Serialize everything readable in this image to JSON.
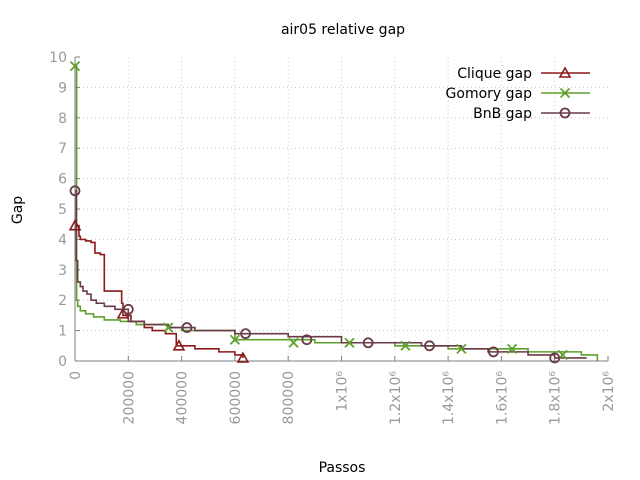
{
  "chart_data": {
    "type": "line",
    "title": "air05 relative gap",
    "xlabel": "Passos",
    "ylabel": "Gap",
    "xlim": [
      0,
      2000000
    ],
    "ylim": [
      0,
      10
    ],
    "grid": true,
    "legend_position": "top-right",
    "x_ticks": [
      {
        "value": 0,
        "label": "0"
      },
      {
        "value": 200000,
        "label": "200000"
      },
      {
        "value": 400000,
        "label": "400000"
      },
      {
        "value": 600000,
        "label": "600000"
      },
      {
        "value": 800000,
        "label": "800000"
      },
      {
        "value": 1000000,
        "label": "1x10⁶"
      },
      {
        "value": 1200000,
        "label": "1.2x10⁶"
      },
      {
        "value": 1400000,
        "label": "1.4x10⁶"
      },
      {
        "value": 1600000,
        "label": "1.6x10⁶"
      },
      {
        "value": 1800000,
        "label": "1.8x10⁶"
      },
      {
        "value": 2000000,
        "label": "2x10⁶"
      }
    ],
    "y_ticks": [
      {
        "value": 0,
        "label": "0"
      },
      {
        "value": 1,
        "label": "1"
      },
      {
        "value": 2,
        "label": "2"
      },
      {
        "value": 3,
        "label": "3"
      },
      {
        "value": 4,
        "label": "4"
      },
      {
        "value": 5,
        "label": "5"
      },
      {
        "value": 6,
        "label": "6"
      },
      {
        "value": 7,
        "label": "7"
      },
      {
        "value": 8,
        "label": "8"
      },
      {
        "value": 9,
        "label": "9"
      },
      {
        "value": 10,
        "label": "10"
      }
    ],
    "series": [
      {
        "name": "Clique gap",
        "color": "#8b1a1a",
        "marker": "triangle",
        "x": [
          0,
          15000,
          20000,
          40000,
          60000,
          75000,
          95000,
          110000,
          155000,
          175000,
          180000,
          210000,
          260000,
          290000,
          340000,
          380000,
          410000,
          450000,
          540000,
          600000,
          630000
        ],
        "y": [
          4.45,
          4.1,
          4.0,
          3.95,
          3.9,
          3.55,
          3.5,
          2.3,
          2.3,
          1.9,
          1.5,
          1.3,
          1.1,
          1.0,
          0.9,
          0.5,
          0.5,
          0.4,
          0.3,
          0.2,
          0.1
        ],
        "markers_x": [
          0,
          180000,
          390000,
          630000
        ],
        "markers_y": [
          4.45,
          1.55,
          0.5,
          0.1
        ]
      },
      {
        "name": "Gomory gap",
        "color": "#5ea02e",
        "marker": "cross",
        "x": [
          0,
          6000,
          10000,
          20000,
          40000,
          70000,
          110000,
          170000,
          230000,
          350000,
          400000,
          600000,
          900000,
          1200000,
          1400000,
          1500000,
          1700000,
          1900000,
          1960000
        ],
        "y": [
          9.7,
          2.0,
          1.8,
          1.65,
          1.55,
          1.45,
          1.35,
          1.3,
          1.2,
          1.1,
          1.0,
          0.7,
          0.6,
          0.5,
          0.4,
          0.4,
          0.3,
          0.2,
          0.0
        ],
        "markers_x": [
          0,
          350000,
          600000,
          820000,
          1030000,
          1240000,
          1450000,
          1640000,
          1830000
        ],
        "markers_y": [
          9.7,
          1.1,
          0.7,
          0.6,
          0.6,
          0.5,
          0.4,
          0.4,
          0.2
        ]
      },
      {
        "name": "BnB gap",
        "color": "#6b3a48",
        "marker": "circle",
        "x": [
          0,
          5000,
          10000,
          20000,
          30000,
          45000,
          60000,
          80000,
          110000,
          150000,
          200000,
          260000,
          350000,
          450000,
          600000,
          800000,
          1000000,
          1300000,
          1450000,
          1550000,
          1700000,
          1800000,
          1920000
        ],
        "y": [
          5.6,
          3.3,
          2.6,
          2.45,
          2.3,
          2.2,
          2.0,
          1.9,
          1.8,
          1.7,
          1.3,
          1.2,
          1.1,
          1.0,
          0.9,
          0.8,
          0.6,
          0.5,
          0.4,
          0.3,
          0.2,
          0.1,
          0.1
        ],
        "markers_x": [
          0,
          200000,
          420000,
          640000,
          870000,
          1100000,
          1330000,
          1570000,
          1800000
        ],
        "markers_y": [
          5.6,
          1.7,
          1.1,
          0.9,
          0.7,
          0.6,
          0.5,
          0.3,
          0.1
        ]
      }
    ]
  }
}
